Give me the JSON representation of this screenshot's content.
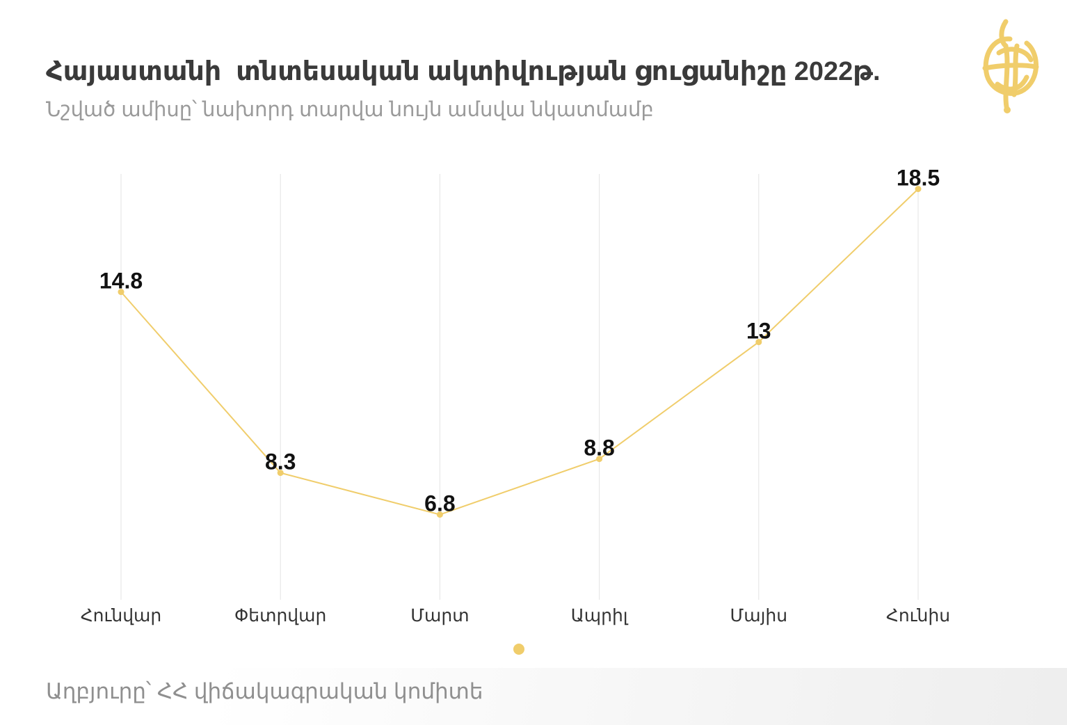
{
  "header": {
    "title": "Հայաստանի  տնտեսական ակտիվության ցուցանիշը 2022թ.",
    "subtitle": "Նշված ամիսը՝ նախորդ տարվա նույն ամսվա նկատմամբ"
  },
  "footer": {
    "source": "Աղբյուրը՝ ՀՀ վիճակագրական կոմիտե"
  },
  "logo": {
    "icon": "yellow-emblem-icon"
  },
  "colors": {
    "accent": "#f0cd6b",
    "grid": "#e3e3e3",
    "title": "#3a3a3a",
    "subtitle": "#9a9a9a",
    "label": "#111111"
  },
  "chart_data": {
    "type": "line",
    "categories": [
      "Հունվար",
      "Փետրվար",
      "Մարտ",
      "Ապրիլ",
      "Մայիս",
      "Հունիս"
    ],
    "series": [
      {
        "values": [
          14.8,
          8.3,
          6.8,
          8.8,
          13,
          18.5
        ],
        "labels": [
          "14.8",
          "8.3",
          "6.8",
          "8.8",
          "13",
          "18.5"
        ]
      }
    ],
    "ylim": [
      5,
      19
    ],
    "grid": "vertical",
    "legend": "bottom-center",
    "xlabel": "",
    "ylabel": ""
  }
}
